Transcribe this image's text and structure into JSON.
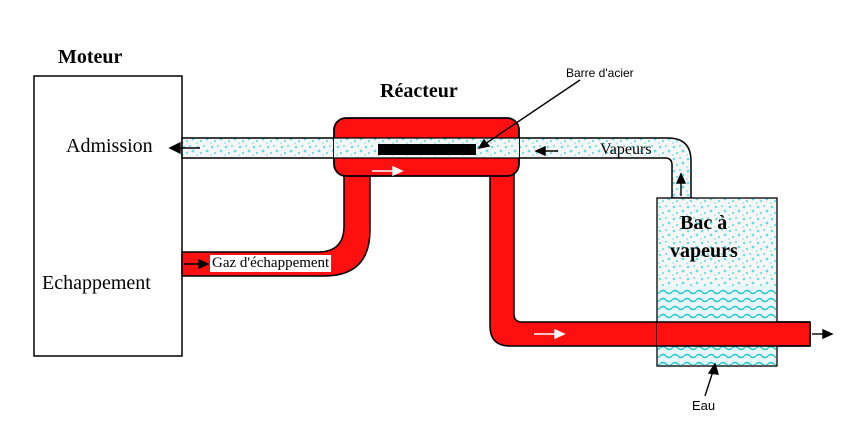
{
  "labels": {
    "engine": "Moteur",
    "intake": "Admission",
    "exhaust": "Echappement",
    "reactor": "Réacteur",
    "steel_bar": "Barre d'acier",
    "vapors": "Vapeurs",
    "exhaust_gas": "Gaz d'échappement",
    "vapor_tank_line1": "Bac à",
    "vapor_tank_line2": "vapeurs",
    "water": "Eau"
  },
  "colors": {
    "pipe_red": "#ff1010",
    "vapor_cyan": "#66e0e8",
    "outline": "#000000",
    "bar": "#000000",
    "vapor_pipe_fill": "#f4f4f4"
  }
}
